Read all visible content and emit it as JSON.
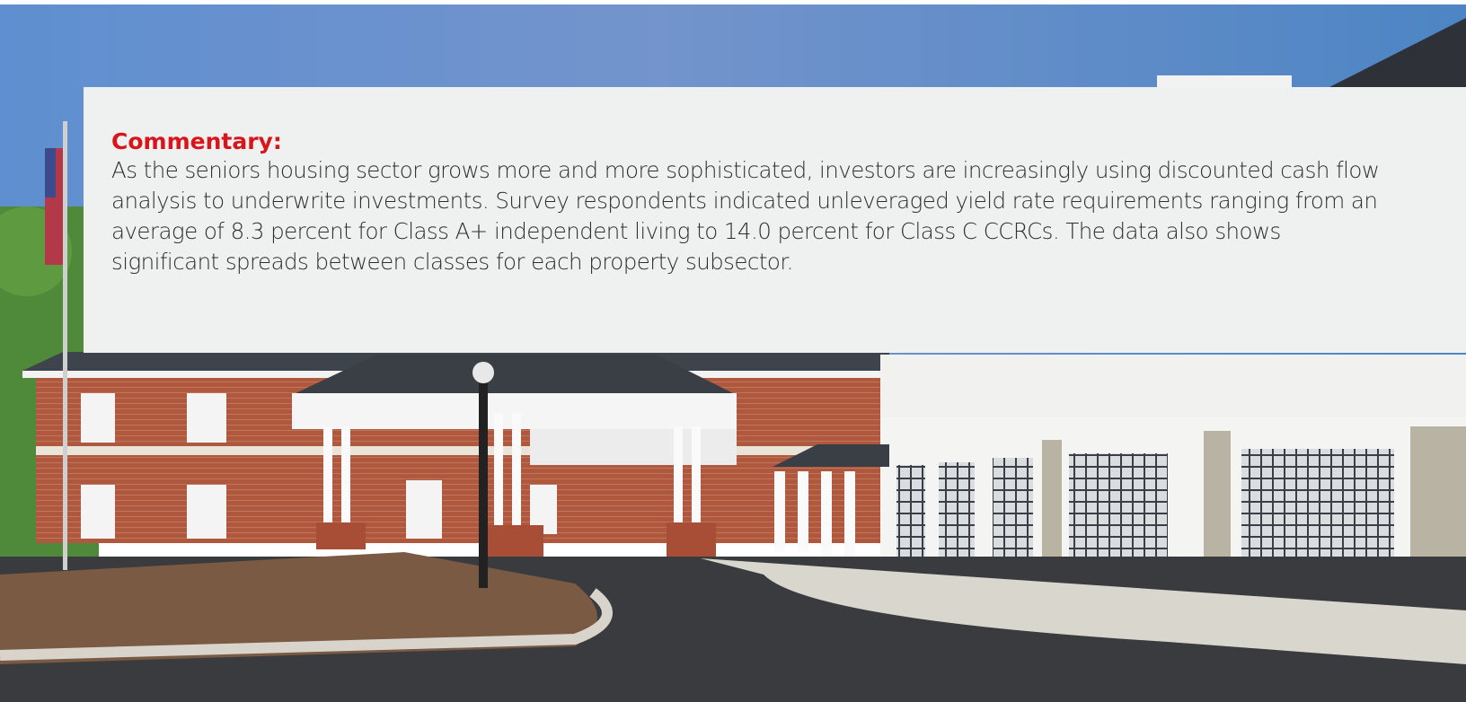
{
  "heading": "Commentary:",
  "body": "As the seniors housing sector grows more and more sophisticated, investors are increasingly using discounted cash flow analysis to underwrite investments. Survey respondents indicated unleveraged yield rate requirements ranging from an average of 8.3 percent for Class A+ independent living to 14.0 percent for Class C CCRCs. The data also shows significant spreads between classes for each property subsector."
}
